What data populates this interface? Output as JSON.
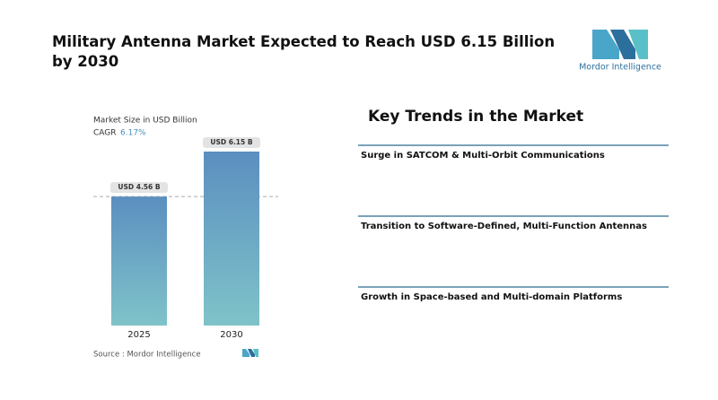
{
  "header": {
    "title": "Military Antenna Market Expected to Reach USD 6.15 Billion by 2030",
    "logo_text": "Mordor Intelligence"
  },
  "chart_data": {
    "type": "bar",
    "subtitle": "Market Size in USD Billion",
    "cagr_label": "CAGR",
    "cagr_value": "6.17%",
    "categories": [
      "2025",
      "2030"
    ],
    "values": [
      4.56,
      6.15
    ],
    "value_labels": [
      "USD 4.56 B",
      "USD 6.15 B"
    ],
    "color_top": "#5b8fc0",
    "color_bottom": "#7fc3c9",
    "source": "Source : Mordor Intelligence"
  },
  "trends": {
    "title": "Key Trends in the Market",
    "items": [
      "Surge in SATCOM & Multi-Orbit Communications",
      "Transition to Software-Defined, Multi-Function Antennas",
      "Growth in Space-based and Multi-domain Platforms"
    ]
  }
}
